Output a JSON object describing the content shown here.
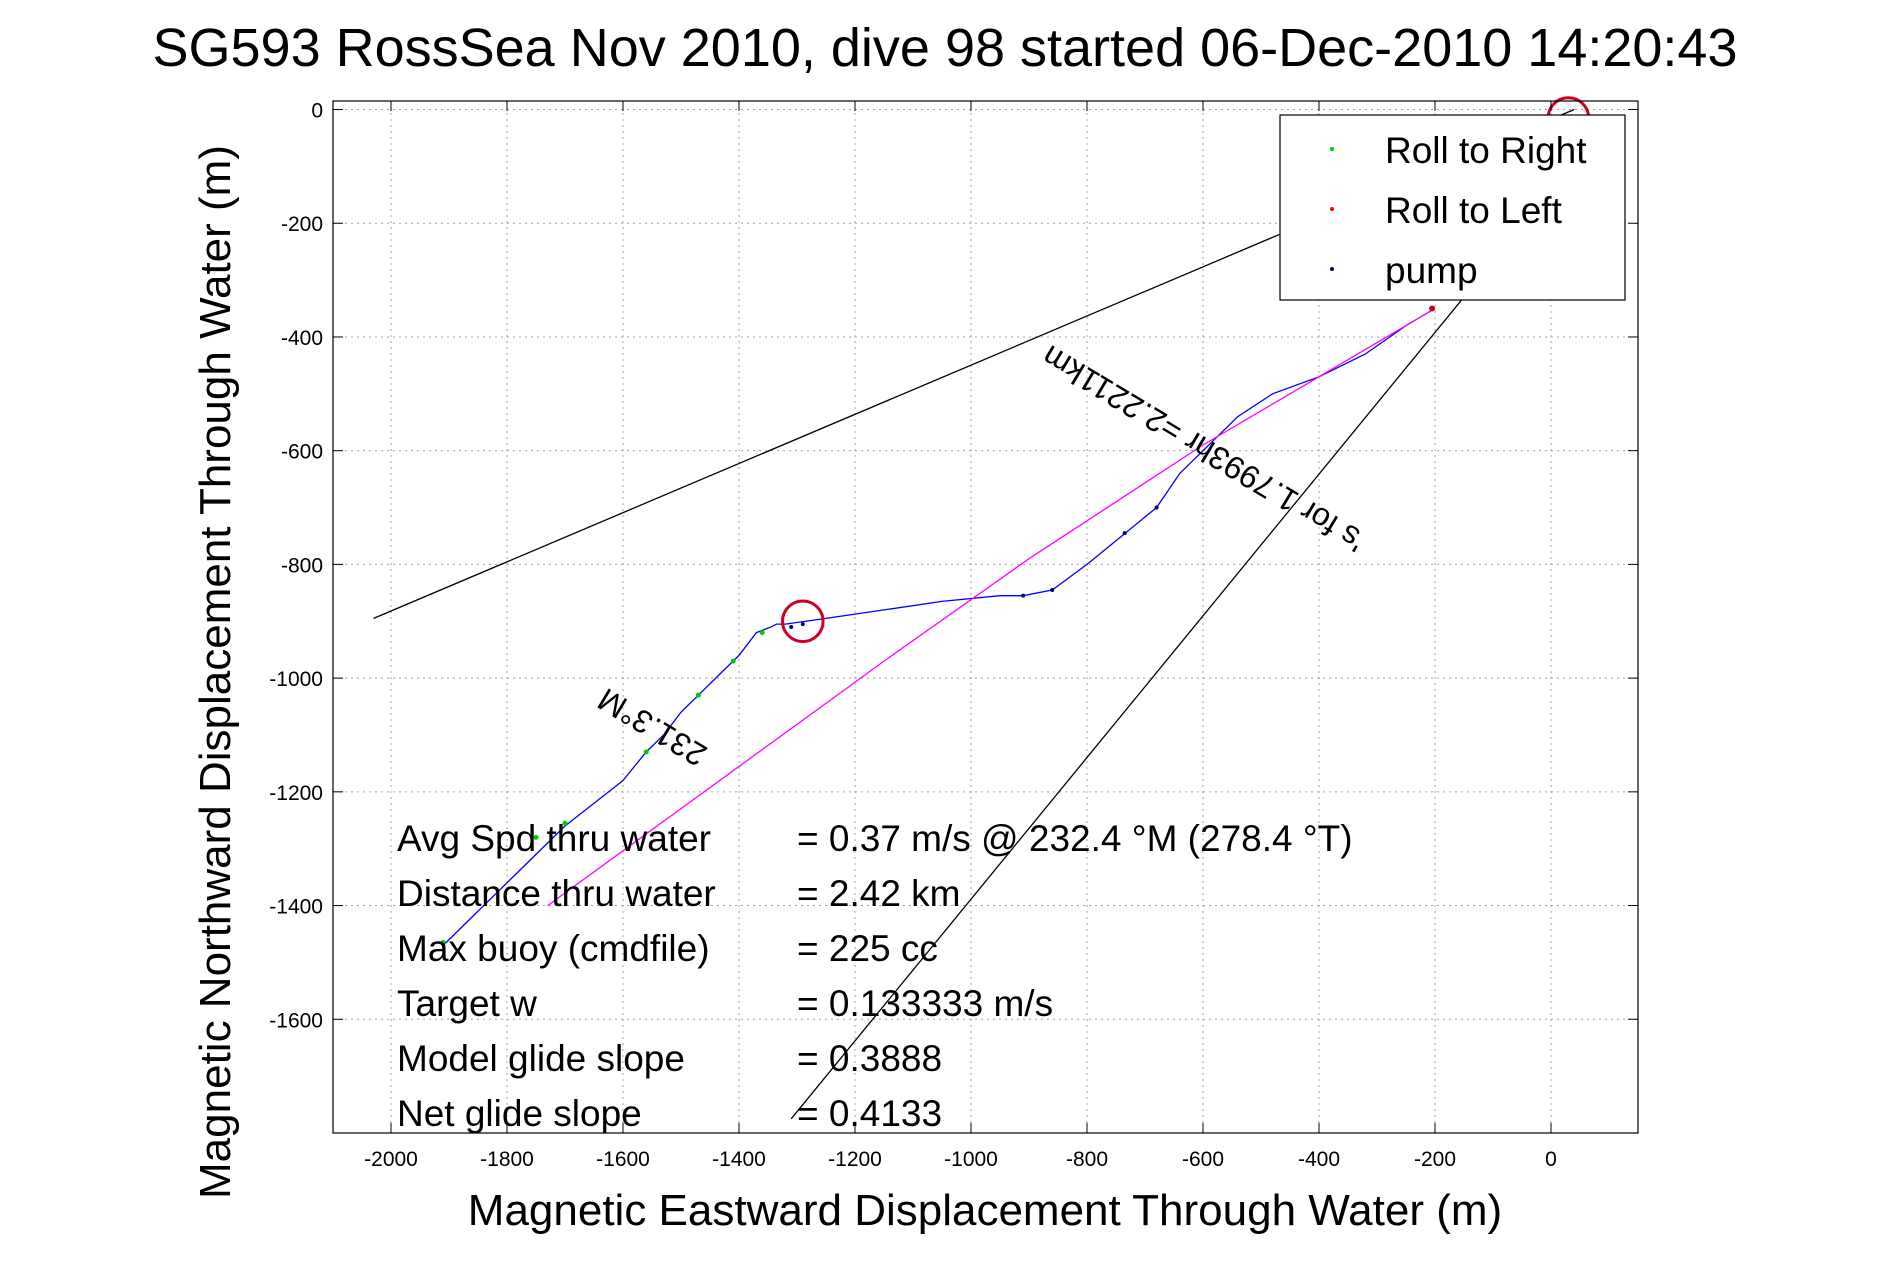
{
  "chart_data": {
    "type": "line",
    "title": "SG593 RossSea Nov 2010, dive 98 started 06-Dec-2010 14:20:43",
    "xlabel": "Magnetic Eastward Displacement Through Water (m)",
    "ylabel": "Magnetic Northward Displacement Through Water (m)",
    "xlim": [
      -2100,
      150
    ],
    "ylim": [
      -1800,
      15
    ],
    "xticks": [
      -2000,
      -1800,
      -1600,
      -1400,
      -1200,
      -1000,
      -800,
      -600,
      -400,
      -200,
      0
    ],
    "yticks": [
      0,
      -200,
      -400,
      -600,
      -800,
      -1000,
      -1200,
      -1400,
      -1600
    ],
    "grid": true,
    "legend_position": "top-right",
    "legend": [
      {
        "name": "Roll to Right",
        "color": "#00cc00"
      },
      {
        "name": "Roll to Left",
        "color": "#ff0000"
      },
      {
        "name": "pump",
        "color": "#000080"
      }
    ],
    "series": [
      {
        "role": "track",
        "color": "#0000ff",
        "x": [
          -1910,
          -1860,
          -1790,
          -1730,
          -1700,
          -1650,
          -1600,
          -1560,
          -1530,
          -1500,
          -1470,
          -1430,
          -1400,
          -1370,
          -1345,
          -1335,
          -1320,
          -1250,
          -1150,
          -1050,
          -950,
          -910,
          -860,
          -800,
          -740,
          -680,
          -640,
          -600,
          -540,
          -480,
          -400,
          -320,
          -250,
          -200
        ],
        "y": [
          -1470,
          -1420,
          -1350,
          -1290,
          -1260,
          -1220,
          -1180,
          -1130,
          -1100,
          -1060,
          -1030,
          -990,
          -960,
          -920,
          -910,
          -905,
          -905,
          -895,
          -880,
          -865,
          -855,
          -855,
          -845,
          -800,
          -750,
          -700,
          -640,
          -600,
          -540,
          -500,
          -470,
          -430,
          -380,
          -350
        ]
      },
      {
        "role": "straight-track",
        "color": "#ff00ff",
        "x": [
          -1730,
          -1150,
          -900,
          -600,
          -200
        ],
        "y": [
          -1400,
          -970,
          -790,
          -590,
          -350
        ]
      },
      {
        "role": "line-1",
        "color": "#000000",
        "x": [
          -2030,
          40
        ],
        "y": [
          -895,
          0
        ]
      },
      {
        "role": "line-2",
        "color": "#000000",
        "x": [
          -1310,
          -110
        ],
        "y": [
          -1775,
          -280
        ]
      }
    ],
    "roll_right_points": {
      "x": [
        -1910,
        -1750,
        -1700,
        -1560,
        -1470,
        -1410,
        -1360
      ],
      "y": [
        -1465,
        -1280,
        -1255,
        -1130,
        -1030,
        -970,
        -920
      ]
    },
    "roll_left_loops": [
      {
        "cx": -1290,
        "cy": -900,
        "r": 35
      },
      {
        "cx": 30,
        "cy": -15,
        "r": 35
      }
    ],
    "roll_left_points": {
      "x": [
        -205
      ],
      "y": [
        -350
      ]
    },
    "pump_points": {
      "x": [
        -1310,
        -1290,
        -910,
        -860,
        -735,
        -680
      ],
      "y": [
        -910,
        -905,
        -855,
        -845,
        -745,
        -700
      ]
    },
    "annotations": [
      {
        "text": "231.3°M",
        "x": -1540,
        "y": -1070,
        "rotation": 211
      },
      {
        "text": "'s for 1.7993hr =2.2211km",
        "x": -590,
        "y": -580,
        "rotation": 211
      }
    ],
    "stats": [
      {
        "label": "Avg Spd thru water",
        "value": "=  0.37 m/s @ 232.4 °M (278.4 °T)"
      },
      {
        "label": "Distance thru water",
        "value": "=  2.42 km"
      },
      {
        "label": "Max buoy (cmdfile)",
        "value": "= 225 cc"
      },
      {
        "label": "Target w",
        "value": "= 0.133333 m/s"
      },
      {
        "label": "Model glide slope",
        "value": "= 0.3888"
      },
      {
        "label": "Net glide slope",
        "value": "= 0.4133"
      }
    ]
  }
}
